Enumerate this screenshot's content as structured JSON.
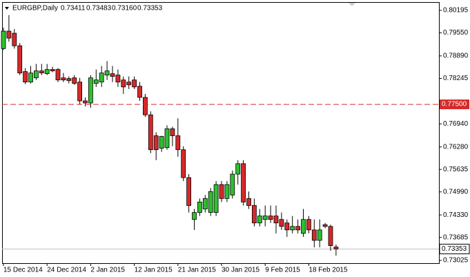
{
  "chart_data": {
    "type": "candlestick",
    "title": "EURGBP,Daily",
    "header_values": [
      "0.73411",
      "0.73483",
      "0.73160",
      "0.73353"
    ],
    "categories": [
      "15 Dec 2014",
      null,
      null,
      null,
      null,
      null,
      null,
      null,
      "24 Dec 2014",
      null,
      null,
      null,
      null,
      null,
      null,
      null,
      "2 Jan 2015",
      null,
      null,
      null,
      null,
      null,
      null,
      null,
      "12 Jan 2015",
      null,
      null,
      null,
      null,
      null,
      null,
      null,
      "21 Jan 2015",
      null,
      null,
      null,
      null,
      null,
      null,
      null,
      "30 Jan 2015",
      null,
      null,
      null,
      null,
      null,
      null,
      null,
      "9 Feb 2015",
      null,
      null,
      null,
      null,
      null,
      null,
      null,
      "18 Feb 2015",
      null,
      null,
      null,
      null,
      null
    ],
    "open": [
      0.791,
      0.796,
      0.7954,
      0.7918,
      0.7844,
      0.7814,
      0.7826,
      0.7846,
      0.7838,
      0.785,
      0.785,
      0.7826,
      0.7824,
      0.7826,
      0.7814,
      0.776,
      0.7754,
      0.781,
      0.7814,
      0.7834,
      0.7838,
      0.7834,
      0.782,
      0.7814,
      0.782,
      0.7802,
      0.777,
      0.772,
      0.766,
      0.7624,
      0.7626,
      0.768,
      0.766,
      0.762,
      0.754,
      0.742,
      0.744,
      0.745,
      0.744,
      0.744,
      0.752,
      0.748,
      0.749,
      0.755,
      0.758,
      0.748,
      0.746,
      0.741,
      0.742,
      0.743,
      0.743,
      0.742,
      0.741,
      0.739,
      0.74,
      0.738,
      0.742,
      0.739,
      0.736,
      0.7405,
      0.74,
      0.73411
    ],
    "high": [
      0.797,
      0.8006,
      0.7966,
      0.7926,
      0.7854,
      0.786,
      0.7866,
      0.7866,
      0.7866,
      0.7858,
      0.7854,
      0.784,
      0.783,
      0.7834,
      0.7826,
      0.777,
      0.7834,
      0.785,
      0.786,
      0.7874,
      0.786,
      0.785,
      0.783,
      0.783,
      0.783,
      0.7814,
      0.778,
      0.773,
      0.767,
      0.766,
      0.769,
      0.7686,
      0.771,
      0.763,
      0.755,
      0.745,
      0.748,
      0.749,
      0.751,
      0.753,
      0.753,
      0.753,
      0.756,
      0.759,
      0.759,
      0.75,
      0.748,
      0.745,
      0.746,
      0.746,
      0.746,
      0.744,
      0.742,
      0.743,
      0.742,
      0.745,
      0.743,
      0.742,
      0.742,
      0.741,
      0.7405,
      0.73483
    ],
    "low": [
      0.7906,
      0.793,
      0.791,
      0.7834,
      0.7808,
      0.781,
      0.782,
      0.7834,
      0.7834,
      0.7842,
      0.7814,
      0.7814,
      0.781,
      0.7806,
      0.775,
      0.7744,
      0.774,
      0.78,
      0.78,
      0.782,
      0.7814,
      0.78,
      0.778,
      0.7794,
      0.7794,
      0.776,
      0.7714,
      0.761,
      0.759,
      0.7614,
      0.762,
      0.763,
      0.76,
      0.753,
      0.744,
      0.739,
      0.743,
      0.744,
      0.743,
      0.743,
      0.747,
      0.747,
      0.748,
      0.752,
      0.746,
      0.745,
      0.74,
      0.74,
      0.74,
      0.741,
      0.738,
      0.739,
      0.737,
      0.738,
      0.738,
      0.737,
      0.738,
      0.734,
      0.734,
      0.7395,
      0.733,
      0.7316
    ],
    "close": [
      0.796,
      0.794,
      0.7918,
      0.784,
      0.7814,
      0.784,
      0.7846,
      0.784,
      0.785,
      0.7846,
      0.782,
      0.782,
      0.7818,
      0.781,
      0.776,
      0.7754,
      0.7826,
      0.782,
      0.784,
      0.7846,
      0.783,
      0.7814,
      0.78,
      0.7806,
      0.78,
      0.777,
      0.772,
      0.762,
      0.762,
      0.7658,
      0.768,
      0.766,
      0.762,
      0.754,
      0.746,
      0.744,
      0.747,
      0.748,
      0.75,
      0.752,
      0.748,
      0.752,
      0.755,
      0.758,
      0.747,
      0.746,
      0.741,
      0.743,
      0.743,
      0.742,
      0.741,
      0.74,
      0.739,
      0.74,
      0.739,
      0.742,
      0.739,
      0.736,
      0.739,
      0.74,
      0.7345,
      0.73353
    ],
    "up_color": "#2fbf2f",
    "down_color": "#d42a2a",
    "ylim": [
      0.72946,
      0.80433
    ],
    "yticks": [
      0.80195,
      {
        "value": 0.7955,
        "label": "0.79550"
      },
      {
        "value": 0.7889,
        "label": "0.78890"
      },
      0.78245,
      {
        "value": 0.7694,
        "label": "0.76940"
      },
      {
        "value": 0.7628,
        "label": "0.76280"
      },
      0.75635,
      {
        "value": 0.7499,
        "label": "0.74990"
      },
      {
        "value": 0.7433,
        "label": "0.74330"
      },
      0.73685,
      0.73025
    ],
    "hline": {
      "value": 0.775,
      "label": "0.77500",
      "color": "#d42a2a"
    },
    "last_price": {
      "value": 0.73353,
      "label": "0.73353"
    }
  }
}
